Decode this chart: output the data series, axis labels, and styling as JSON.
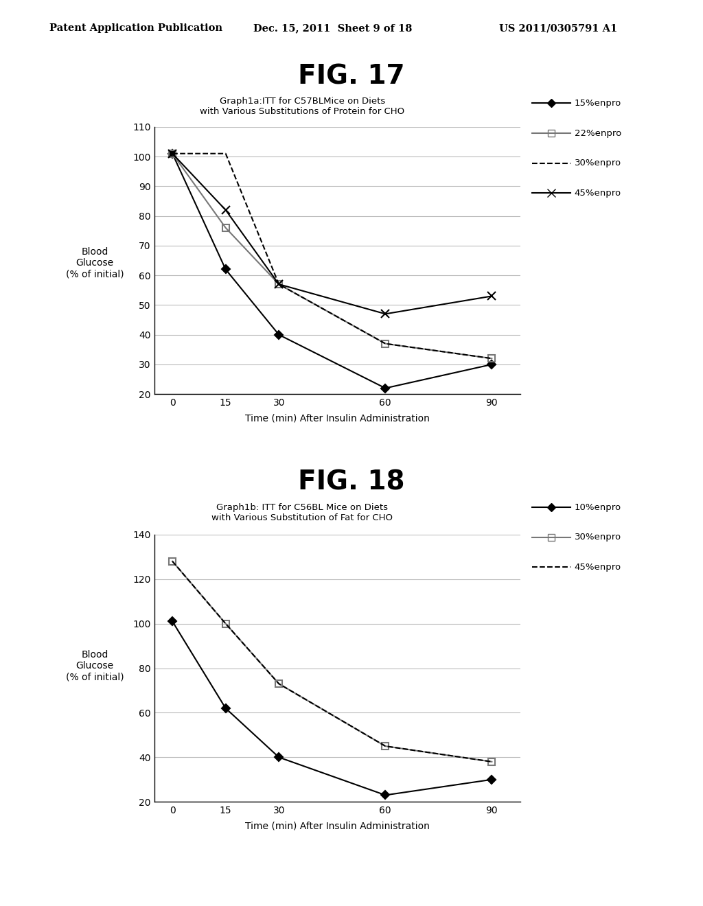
{
  "fig17": {
    "title": "FIG. 17",
    "subtitle_line1": "Graph1a:ITT for C57BLMice on Diets",
    "subtitle_line2": "with Various Substitutions of Protein for CHO",
    "xlabel": "Time (min) After Insulin Administration",
    "ylabel_line1": "Blood",
    "ylabel_line2": "Glucose",
    "ylabel_line3": "(% of initial)",
    "ylim": [
      20,
      110
    ],
    "yticks": [
      20,
      30,
      40,
      50,
      60,
      70,
      80,
      90,
      100,
      110
    ],
    "xticks": [
      0,
      15,
      30,
      60,
      90
    ],
    "series": [
      {
        "label": "15%enpro",
        "x": [
          0,
          15,
          30,
          60,
          90
        ],
        "y": [
          101,
          62,
          40,
          22,
          30
        ],
        "linestyle": "-",
        "marker": "D",
        "color": "#000000",
        "markersize": 6,
        "fillstyle": "full",
        "linewidth": 1.5
      },
      {
        "label": "22%enpro",
        "x": [
          0,
          15,
          30,
          60,
          90
        ],
        "y": [
          101,
          76,
          57,
          37,
          32
        ],
        "linestyle": "-",
        "marker": "s",
        "color": "#777777",
        "markersize": 7,
        "fillstyle": "none",
        "linewidth": 1.5
      },
      {
        "label": "30%enpro",
        "x": [
          0,
          15,
          30,
          60,
          90
        ],
        "y": [
          101,
          101,
          57,
          37,
          32
        ],
        "linestyle": "--",
        "marker": "None",
        "color": "#000000",
        "markersize": 0,
        "fillstyle": "none",
        "linewidth": 1.5
      },
      {
        "label": "45%enpro",
        "x": [
          0,
          15,
          30,
          60,
          90
        ],
        "y": [
          101,
          82,
          57,
          47,
          53
        ],
        "linestyle": "-",
        "marker": "x",
        "color": "#000000",
        "markersize": 9,
        "fillstyle": "none",
        "linewidth": 1.5
      }
    ]
  },
  "fig18": {
    "title": "FIG. 18",
    "subtitle_line1": "Graph1b: ITT for C56BL Mice on Diets",
    "subtitle_line2": "with Various Substitution of Fat for CHO",
    "xlabel": "Time (min) After Insulin Administration",
    "ylabel_line1": "Blood",
    "ylabel_line2": "Glucose",
    "ylabel_line3": "(% of initial)",
    "ylim": [
      20,
      140
    ],
    "yticks": [
      20,
      40,
      60,
      80,
      100,
      120,
      140
    ],
    "xticks": [
      0,
      15,
      30,
      60,
      90
    ],
    "series": [
      {
        "label": "10%enpro",
        "x": [
          0,
          15,
          30,
          60,
          90
        ],
        "y": [
          101,
          62,
          40,
          23,
          30
        ],
        "linestyle": "-",
        "marker": "D",
        "color": "#000000",
        "markersize": 6,
        "fillstyle": "full",
        "linewidth": 1.5
      },
      {
        "label": "30%enpro",
        "x": [
          0,
          15,
          30,
          60,
          90
        ],
        "y": [
          128,
          100,
          73,
          45,
          38
        ],
        "linestyle": "-",
        "marker": "s",
        "color": "#777777",
        "markersize": 7,
        "fillstyle": "none",
        "linewidth": 1.5
      },
      {
        "label": "45%enpro",
        "x": [
          0,
          15,
          30,
          60,
          90
        ],
        "y": [
          128,
          100,
          73,
          45,
          38
        ],
        "linestyle": "--",
        "marker": "None",
        "color": "#000000",
        "markersize": 0,
        "fillstyle": "none",
        "linewidth": 1.5
      }
    ]
  },
  "header_left": "Patent Application Publication",
  "header_mid": "Dec. 15, 2011  Sheet 9 of 18",
  "header_right": "US 2011/0305791 A1",
  "background_color": "#ffffff",
  "text_color": "#000000"
}
